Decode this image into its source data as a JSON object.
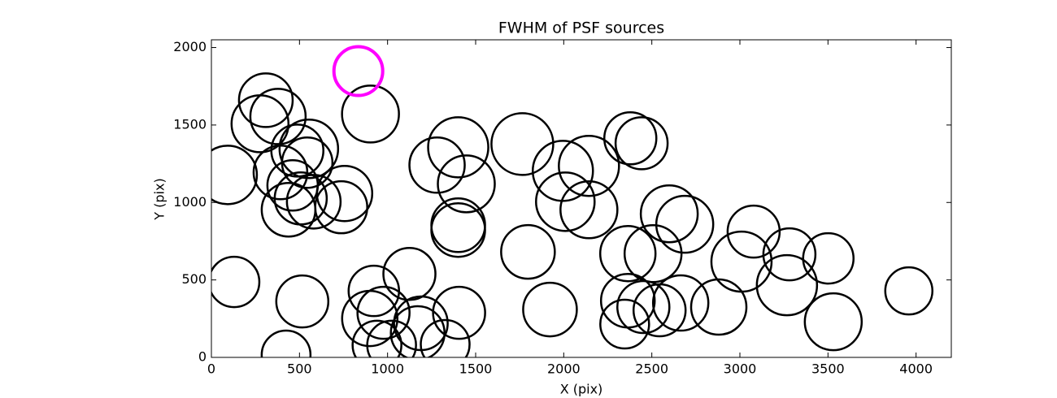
{
  "chart_data": {
    "type": "bubble",
    "title": "FWHM of PSF sources",
    "x_label": "X (pix)",
    "y_label": "Y (pix)",
    "xlim": [
      0,
      4200
    ],
    "ylim": [
      0,
      2050
    ],
    "xticks": [
      0,
      500,
      1000,
      1500,
      2000,
      2500,
      3000,
      3500,
      4000
    ],
    "yticks": [
      0,
      500,
      1000,
      1500,
      2000
    ],
    "series": [
      {
        "color": "#000000",
        "line_width": 2.5,
        "x": [
          92,
          129,
          276,
          309,
          378,
          392,
          438,
          424,
          461,
          507,
          488,
          553,
          544,
          581,
          516,
          756,
          737,
          903,
          922,
          899,
          977,
          940,
          1023,
          1124,
          1171,
          1189,
          1327,
          1281,
          1401,
          1447,
          1401,
          1401,
          1406,
          1765,
          1797,
          1922,
          1995,
          2009,
          2143,
          2143,
          2378,
          2442,
          2364,
          2364,
          2346,
          2452,
          2507,
          2544,
          2599,
          2687,
          2664,
          2880,
          3009,
          3078,
          3267,
          3281,
          3502,
          3530,
          3959
        ],
        "values": [
          1178,
          487,
          1508,
          1660,
          1555,
          1194,
          953,
          16,
          1110,
          1026,
          1335,
          1346,
          1257,
          1005,
          361,
          1058,
          969,
          1571,
          429,
          251,
          288,
          79,
          79,
          539,
          157,
          220,
          84,
          1241,
          1356,
          1120,
          853,
          822,
          288,
          1377,
          681,
          309,
          1204,
          1005,
          1236,
          953,
          1414,
          1382,
          670,
          366,
          215,
          325,
          670,
          304,
          927,
          859,
          351,
          325,
          618,
          812,
          466,
          665,
          639,
          230,
          429
        ],
        "sizes": [
          36,
          31,
          35,
          33,
          34,
          33,
          33,
          30,
          31,
          32,
          32,
          36,
          31,
          33,
          32,
          34,
          32,
          35,
          31,
          34,
          32,
          30,
          30,
          32,
          33,
          33,
          30,
          34,
          37,
          35,
          33,
          33,
          32,
          38,
          33,
          33,
          37,
          36,
          37,
          35,
          32,
          32,
          34,
          33,
          30,
          32,
          35,
          32,
          35,
          35,
          34,
          34,
          37,
          32,
          37,
          32,
          31,
          35,
          29
        ]
      },
      {
        "color": "#ff00ff",
        "line_width": 4,
        "x": [
          834
        ],
        "values": [
          1848
        ],
        "sizes": [
          30
        ]
      }
    ]
  }
}
